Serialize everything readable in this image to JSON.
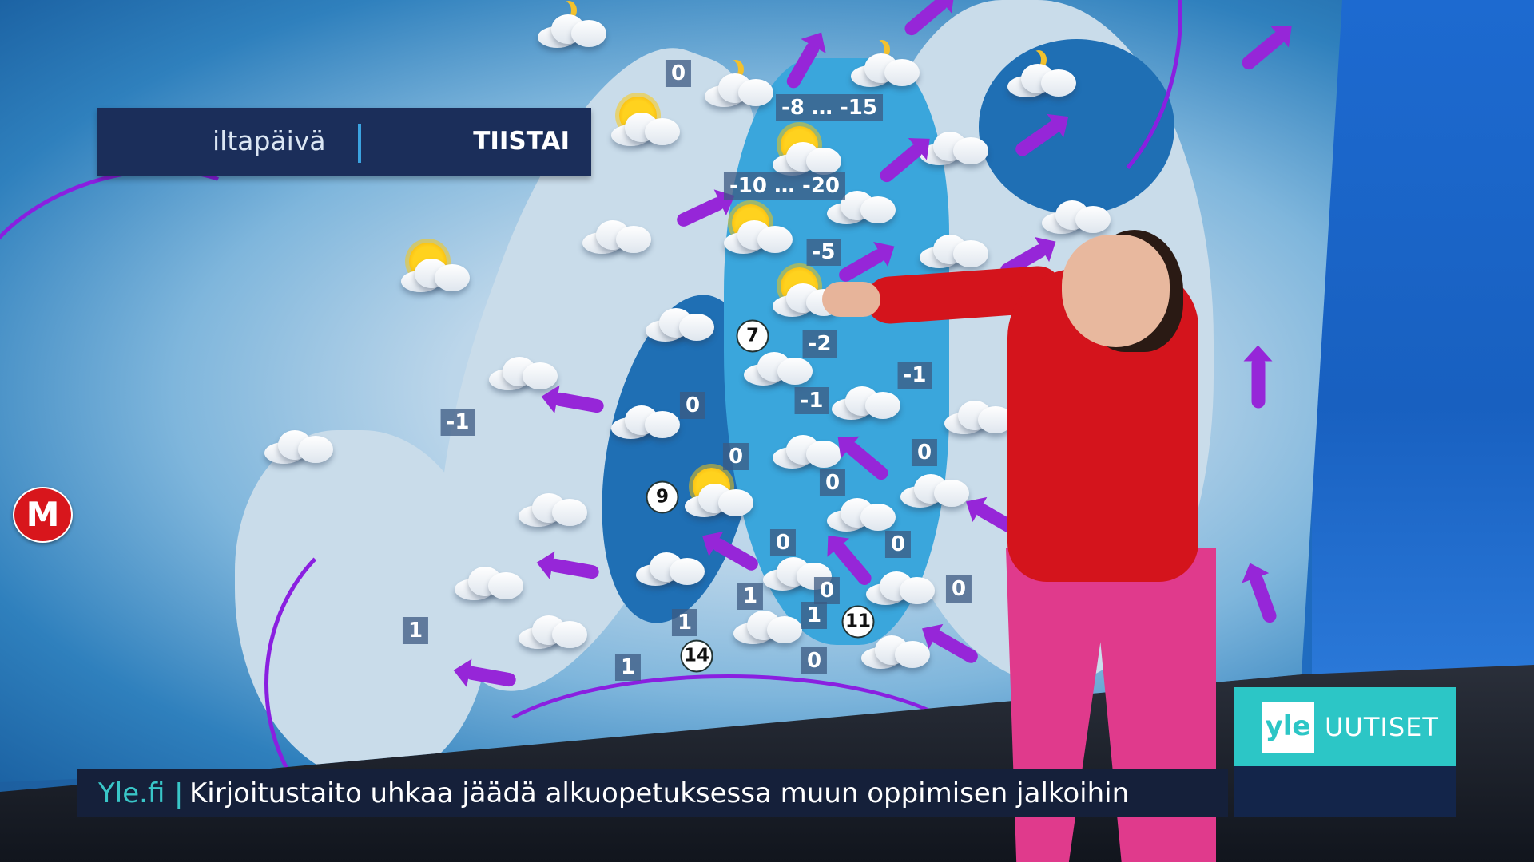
{
  "header": {
    "time_of_day": "iltapäivä",
    "day": "TIISTAI"
  },
  "map": {
    "temperatures": [
      "0",
      "-8 … -15",
      "-10 … -20",
      "-5",
      "-2",
      "-1",
      "-1",
      "0",
      "-1",
      "0",
      "0",
      "0",
      "0",
      "0",
      "1",
      "0",
      "0",
      "1",
      "1",
      "1",
      "1",
      "0"
    ],
    "wind_speeds": [
      "7",
      "9",
      "14",
      "11"
    ],
    "colors": {
      "front": "#8a1fe0",
      "wind_arrow": "#9626d8",
      "sea": "#1f6fb4",
      "finland": "#3aa6dc"
    }
  },
  "channel_logo": "M",
  "ticker": {
    "source": "Yle.fi",
    "separator": "|",
    "headline": "Kirjoitustaito uhkaa jäädä alkuopetuksessa muun oppimisen jalkoihin"
  },
  "brand": {
    "logo": "yle",
    "label": "UUTISET",
    "color": "#2cc6c6"
  }
}
